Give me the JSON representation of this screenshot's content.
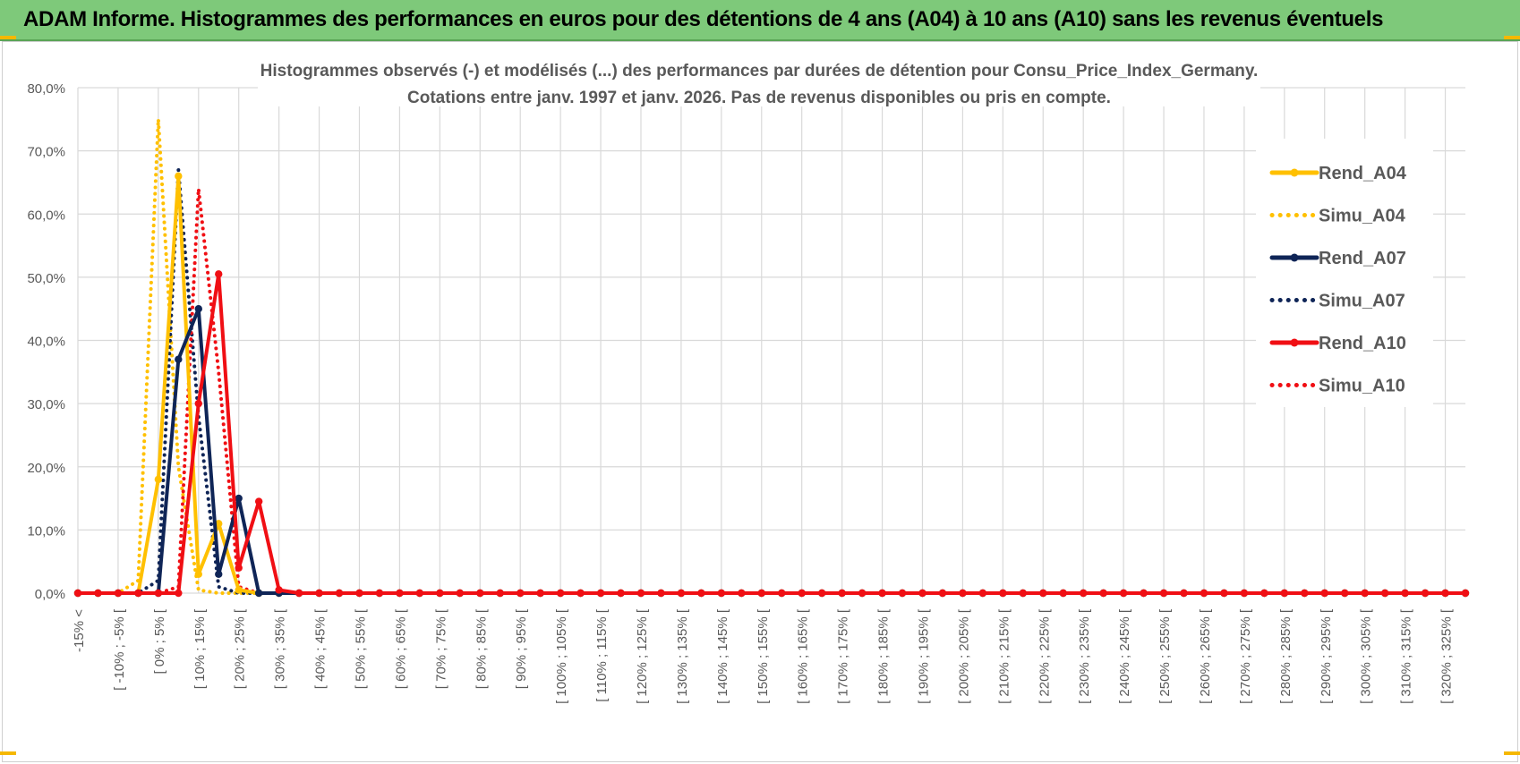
{
  "header": {
    "title": "ADAM Informe. Histogrammes des performances en euros pour des détentions de 4 ans (A04) à 10 ans (A10) sans les revenus éventuels"
  },
  "colors": {
    "banner": "#7ec97a",
    "A04": "#ffc000",
    "A07": "#0f2557",
    "A10": "#f00f14",
    "grid": "#d9d9d9"
  },
  "chart_data": {
    "type": "line",
    "title": "Histogrammes observés (-) et modélisés (...) des performances par durées de détention pour Consu_Price_Index_Germany.",
    "subtitle": "Cotations entre janv. 1997 et janv. 2026. Pas de revenus disponibles ou pris en compte.",
    "xlabel": "",
    "ylabel": "",
    "ylim": [
      0,
      80
    ],
    "y_ticks": [
      "0,0%",
      "10,0%",
      "20,0%",
      "30,0%",
      "40,0%",
      "50,0%",
      "60,0%",
      "70,0%",
      "80,0%"
    ],
    "grid": true,
    "legend_position": "right",
    "x_tick_labels": [
      "-15% <",
      "[ -10% ; -5% [",
      "[ 0% ; 5% [",
      "[ 10% ; 15% [",
      "[ 20% ; 25% [",
      "[ 30% ; 35% [",
      "[ 40% ; 45% [",
      "[ 50% ; 55% [",
      "[ 60% ; 65% [",
      "[ 70% ; 75% [",
      "[ 80% ; 85% [",
      "[ 90% ; 95% [",
      "[ 100% ; 105% [",
      "[ 110% ; 115% [",
      "[ 120% ; 125% [",
      "[ 130% ; 135% [",
      "[ 140% ; 145% [",
      "[ 150% ; 155% [",
      "[ 160% ; 165% [",
      "[ 170% ; 175% [",
      "[ 180% ; 185% [",
      "[ 190% ; 195% [",
      "[ 200% ; 205% [",
      "[ 210% ; 215% [",
      "[ 220% ; 225% [",
      "[ 230% ; 235% [",
      "[ 240% ; 245% [",
      "[ 250% ; 255% [",
      "[ 260% ; 265% [",
      "[ 270% ; 275% [",
      "[ 280% ; 285% [",
      "[ 290% ; 295% [",
      "[ 300% ; 305% [",
      "[ 310% ; 315% [",
      "[ 320% ; 325% ["
    ],
    "categories_count": 70,
    "series": [
      {
        "name": "Rend_A04",
        "style": "solid",
        "color": "#ffc000",
        "values": {
          "3": 0,
          "4": 18.0,
          "5": 66.0,
          "6": 3.0,
          "7": 11.0,
          "8": 0.5,
          "9": 0
        }
      },
      {
        "name": "Simu_A04",
        "style": "dotted",
        "color": "#ffc000",
        "values": {
          "1": 0,
          "2": 0,
          "3": 2.0,
          "4": 75.0,
          "5": 20.0,
          "6": 0.5,
          "7": 0
        }
      },
      {
        "name": "Rend_A07",
        "style": "solid",
        "color": "#0f2557",
        "values": {
          "4": 0,
          "5": 37.0,
          "6": 45.0,
          "7": 3.0,
          "8": 15.0,
          "9": 0,
          "10": 0
        }
      },
      {
        "name": "Simu_A07",
        "style": "dotted",
        "color": "#0f2557",
        "values": {
          "3": 0,
          "4": 2.0,
          "5": 67.0,
          "6": 28.0,
          "7": 1.0,
          "8": 0
        }
      },
      {
        "name": "Rend_A10",
        "style": "solid",
        "color": "#f00f14",
        "values": {
          "5": 0,
          "6": 30.0,
          "7": 50.5,
          "8": 4.0,
          "9": 14.5,
          "10": 0.5,
          "11": 0
        }
      },
      {
        "name": "Simu_A10",
        "style": "dotted",
        "color": "#f00f14",
        "values": {
          "4": 0,
          "5": 1.0,
          "6": 64.0,
          "7": 35.0,
          "8": 1.0,
          "9": 0
        }
      }
    ]
  }
}
